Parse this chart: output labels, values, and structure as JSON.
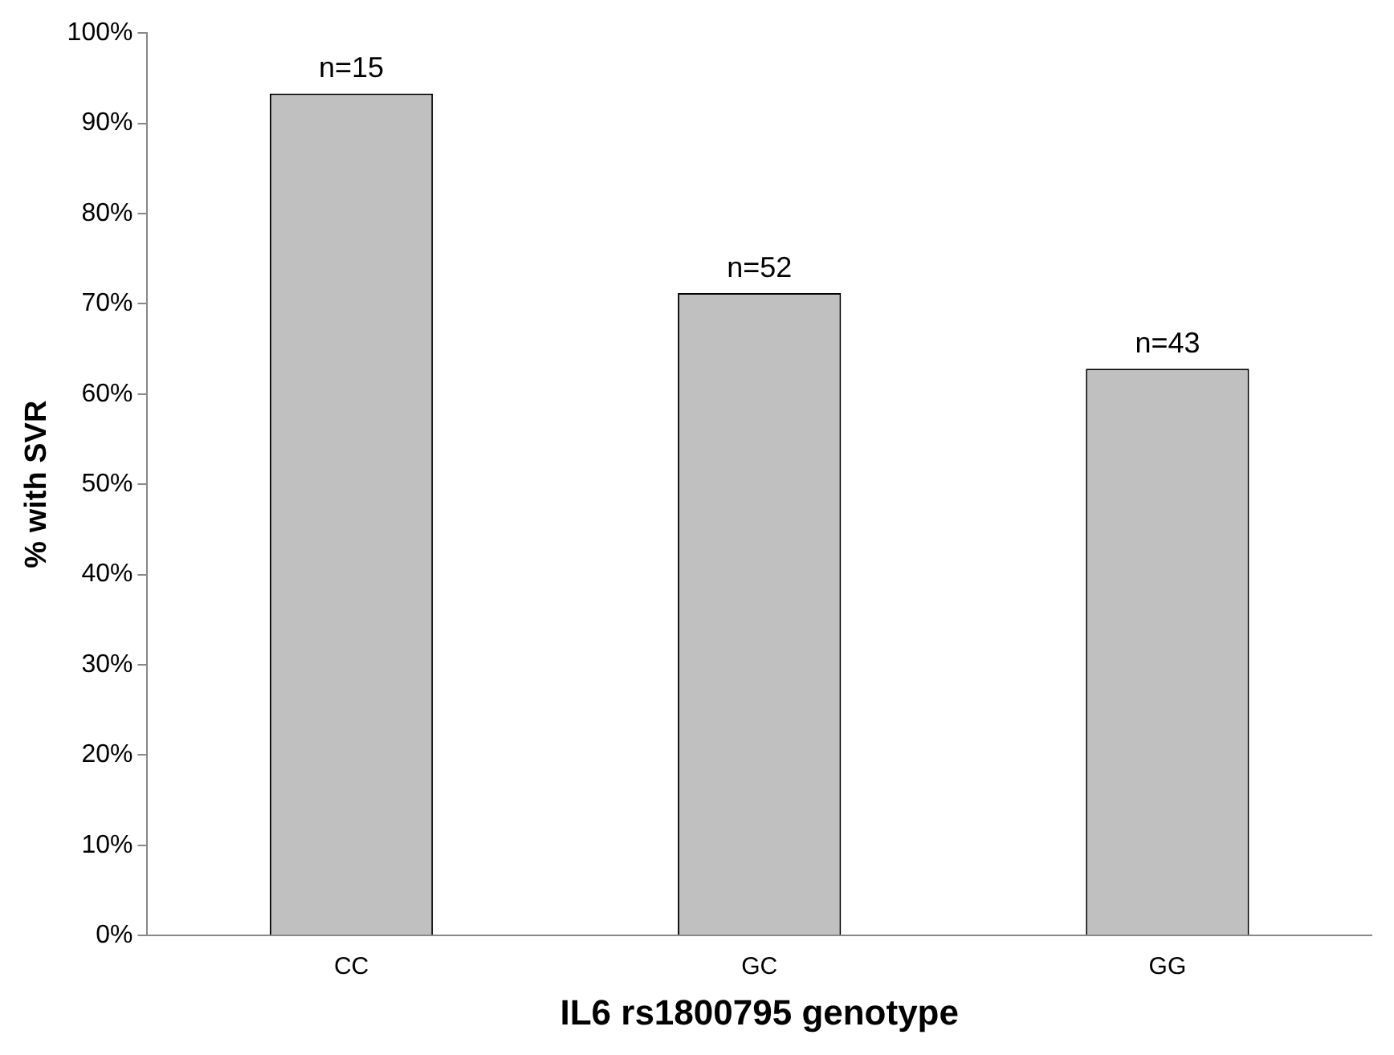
{
  "chart_data": {
    "type": "bar",
    "xlabel": "IL6 rs1800795 genotype",
    "ylabel": "% with SVR",
    "categories": [
      "CC",
      "GC",
      "GG"
    ],
    "series": [
      {
        "color": "#c0c0c0",
        "values": [
          93.3,
          71.2,
          62.8
        ]
      }
    ],
    "ylim": [
      0,
      100
    ],
    "yticks": [
      {
        "value": 0,
        "label": "0%"
      },
      {
        "value": 10,
        "label": "10%"
      },
      {
        "value": 20,
        "label": "20%"
      },
      {
        "value": 30,
        "label": "30%"
      },
      {
        "value": 40,
        "label": "40%"
      },
      {
        "value": 50,
        "label": "50%"
      },
      {
        "value": 60,
        "label": "60%"
      },
      {
        "value": 70,
        "label": "70%"
      },
      {
        "value": 80,
        "label": "80%"
      },
      {
        "value": 90,
        "label": "90%"
      },
      {
        "value": 100,
        "label": "100%"
      }
    ],
    "grid": false,
    "legend": false,
    "annotations": [
      {
        "text": "n=15",
        "x": "CC",
        "y": 93.3
      },
      {
        "text": "n=52",
        "x": "GC",
        "y": 71.2
      },
      {
        "text": "n=43",
        "x": "GG",
        "y": 62.8
      }
    ]
  }
}
